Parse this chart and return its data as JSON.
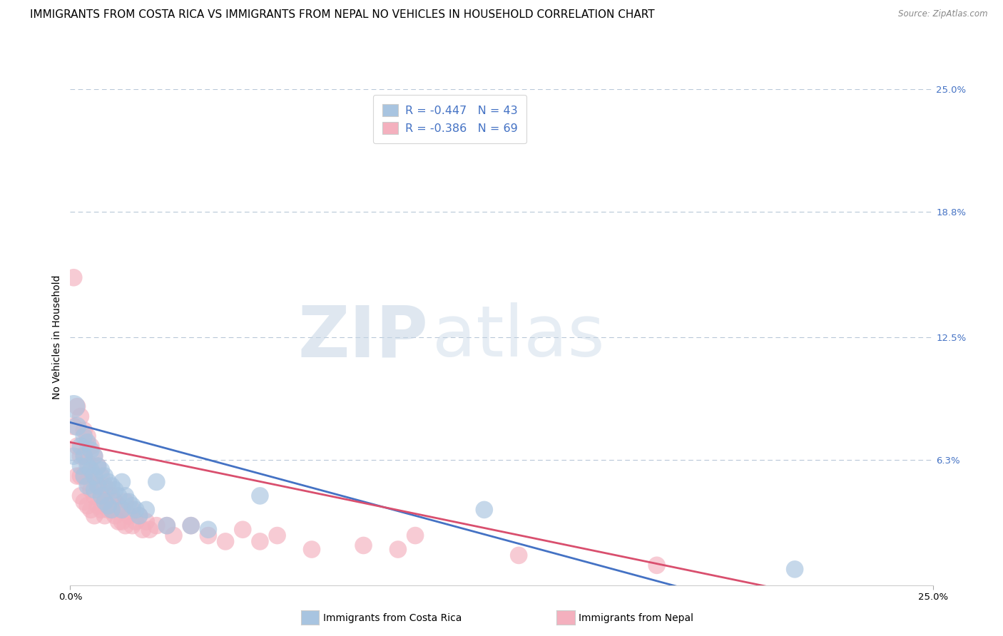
{
  "title": "IMMIGRANTS FROM COSTA RICA VS IMMIGRANTS FROM NEPAL NO VEHICLES IN HOUSEHOLD CORRELATION CHART",
  "source": "Source: ZipAtlas.com",
  "ylabel": "No Vehicles in Household",
  "xlim": [
    0.0,
    0.25
  ],
  "ylim": [
    0.0,
    0.25
  ],
  "ytick_labels_right": [
    "25.0%",
    "18.8%",
    "12.5%",
    "6.3%"
  ],
  "ytick_vals_right": [
    0.25,
    0.188,
    0.125,
    0.063
  ],
  "color_cr": "#a8c4e0",
  "color_nepal": "#f4b0be",
  "line_color_cr": "#4472c4",
  "line_color_nepal": "#d94f6e",
  "watermark_zip": "ZIP",
  "watermark_atlas": "atlas",
  "legend_label_cr": "Immigrants from Costa Rica",
  "legend_label_nepal": "Immigrants from Nepal",
  "legend_text_1": "R = -0.447   N = 43",
  "legend_text_2": "R = -0.386   N = 69",
  "title_fontsize": 11,
  "axis_label_fontsize": 10,
  "tick_fontsize": 9.5,
  "cr_intercept": 0.082,
  "cr_slope": -0.47,
  "np_intercept": 0.072,
  "np_slope": -0.36,
  "costa_rica_x": [
    0.001,
    0.001,
    0.002,
    0.003,
    0.003,
    0.004,
    0.004,
    0.004,
    0.005,
    0.005,
    0.005,
    0.006,
    0.006,
    0.007,
    0.007,
    0.007,
    0.008,
    0.008,
    0.009,
    0.009,
    0.01,
    0.01,
    0.011,
    0.011,
    0.012,
    0.012,
    0.013,
    0.014,
    0.015,
    0.015,
    0.016,
    0.017,
    0.018,
    0.019,
    0.02,
    0.022,
    0.025,
    0.028,
    0.035,
    0.04,
    0.055,
    0.12,
    0.21
  ],
  "costa_rica_y": [
    0.09,
    0.065,
    0.08,
    0.07,
    0.06,
    0.075,
    0.065,
    0.055,
    0.072,
    0.06,
    0.05,
    0.068,
    0.058,
    0.065,
    0.055,
    0.048,
    0.06,
    0.05,
    0.058,
    0.045,
    0.055,
    0.042,
    0.052,
    0.04,
    0.05,
    0.038,
    0.048,
    0.045,
    0.052,
    0.038,
    0.045,
    0.042,
    0.04,
    0.038,
    0.035,
    0.038,
    0.052,
    0.03,
    0.03,
    0.028,
    0.045,
    0.038,
    0.008
  ],
  "costa_rica_size": [
    60,
    35,
    40,
    35,
    35,
    35,
    35,
    35,
    35,
    35,
    35,
    35,
    35,
    35,
    35,
    35,
    35,
    35,
    35,
    35,
    35,
    35,
    35,
    35,
    35,
    35,
    35,
    35,
    35,
    35,
    35,
    35,
    35,
    35,
    35,
    35,
    35,
    35,
    35,
    35,
    35,
    35,
    35
  ],
  "nepal_x": [
    0.001,
    0.001,
    0.002,
    0.002,
    0.002,
    0.003,
    0.003,
    0.003,
    0.003,
    0.004,
    0.004,
    0.004,
    0.004,
    0.005,
    0.005,
    0.005,
    0.005,
    0.006,
    0.006,
    0.006,
    0.006,
    0.007,
    0.007,
    0.007,
    0.007,
    0.008,
    0.008,
    0.008,
    0.009,
    0.009,
    0.009,
    0.01,
    0.01,
    0.01,
    0.011,
    0.011,
    0.012,
    0.012,
    0.013,
    0.013,
    0.014,
    0.014,
    0.015,
    0.015,
    0.016,
    0.016,
    0.017,
    0.018,
    0.018,
    0.019,
    0.02,
    0.021,
    0.022,
    0.023,
    0.025,
    0.028,
    0.03,
    0.035,
    0.04,
    0.045,
    0.05,
    0.055,
    0.06,
    0.07,
    0.085,
    0.095,
    0.1,
    0.13,
    0.17
  ],
  "nepal_y": [
    0.155,
    0.08,
    0.09,
    0.07,
    0.055,
    0.085,
    0.065,
    0.055,
    0.045,
    0.078,
    0.065,
    0.055,
    0.042,
    0.075,
    0.062,
    0.052,
    0.04,
    0.07,
    0.058,
    0.048,
    0.038,
    0.065,
    0.055,
    0.045,
    0.035,
    0.06,
    0.05,
    0.04,
    0.055,
    0.045,
    0.038,
    0.05,
    0.042,
    0.035,
    0.048,
    0.038,
    0.045,
    0.038,
    0.042,
    0.035,
    0.04,
    0.032,
    0.038,
    0.032,
    0.042,
    0.03,
    0.035,
    0.038,
    0.03,
    0.032,
    0.035,
    0.028,
    0.032,
    0.028,
    0.03,
    0.03,
    0.025,
    0.03,
    0.025,
    0.022,
    0.028,
    0.022,
    0.025,
    0.018,
    0.02,
    0.018,
    0.025,
    0.015,
    0.01
  ],
  "nepal_size": [
    35,
    35,
    35,
    35,
    35,
    35,
    35,
    35,
    35,
    35,
    35,
    35,
    35,
    35,
    35,
    35,
    35,
    35,
    35,
    35,
    35,
    35,
    35,
    35,
    35,
    35,
    35,
    35,
    35,
    35,
    35,
    35,
    35,
    35,
    35,
    35,
    35,
    35,
    35,
    35,
    35,
    35,
    35,
    35,
    35,
    35,
    35,
    35,
    35,
    35,
    35,
    35,
    35,
    35,
    35,
    35,
    35,
    35,
    35,
    35,
    35,
    35,
    35,
    35,
    35,
    35,
    35,
    35,
    35
  ]
}
